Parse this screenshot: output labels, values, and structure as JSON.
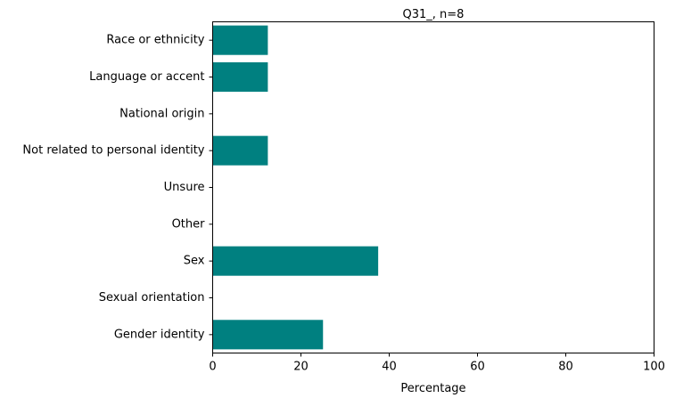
{
  "chart_data": {
    "type": "bar",
    "orientation": "horizontal",
    "title": "Q31_, n=8",
    "xlabel": "Percentage",
    "ylabel": "",
    "xlim": [
      0,
      100
    ],
    "xticks": [
      0,
      20,
      40,
      60,
      80,
      100
    ],
    "categories": [
      "Race or ethnicity",
      "Language or accent",
      "National origin",
      "Not related to personal identity",
      "Unsure",
      "Other",
      "Sex",
      "Sexual orientation",
      "Gender identity"
    ],
    "values": [
      12.5,
      12.5,
      0,
      12.5,
      0,
      0,
      37.5,
      0,
      25.0
    ],
    "bar_color": "#008080",
    "grid": false,
    "legend": "none"
  }
}
